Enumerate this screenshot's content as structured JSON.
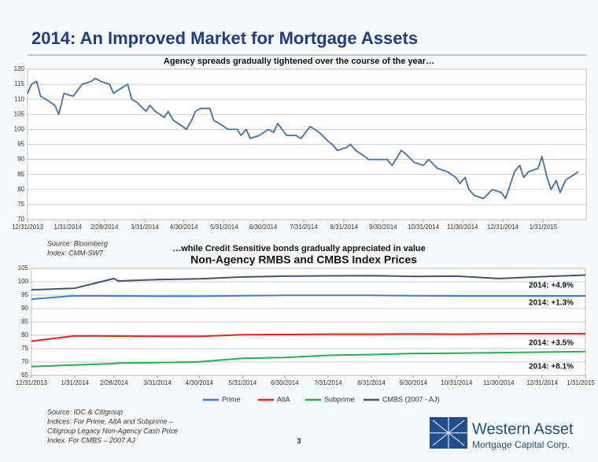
{
  "title": "2014: An Improved Market for Mortgage Assets",
  "page_number": "3",
  "logo": {
    "name": "Western Asset",
    "tagline": "Mortgage Capital Corp."
  },
  "chart_data": [
    {
      "type": "line",
      "title": "Agency spreads gradually tightened over the course of the year…",
      "source": [
        "Source: Bloomberg",
        "Index: CMM-SW7"
      ],
      "color": "#3f6fb5",
      "x": [
        0,
        3,
        7,
        10,
        14,
        21,
        24,
        28,
        35,
        42,
        49,
        52,
        56,
        63,
        66,
        73,
        77,
        80,
        84,
        91,
        94,
        98,
        105,
        108,
        112,
        119,
        122,
        126,
        129,
        133,
        140,
        143,
        147,
        154,
        161,
        164,
        168,
        171,
        178,
        185,
        189,
        192,
        199,
        206,
        210,
        217,
        224,
        231,
        234,
        238,
        245,
        248,
        252,
        259,
        262,
        269,
        276,
        280,
        287,
        290,
        297,
        304,
        308,
        315,
        322,
        329,
        332,
        336,
        339,
        343,
        350,
        357,
        364,
        367,
        371,
        374,
        378,
        381,
        385,
        392,
        395,
        399,
        402,
        406,
        409,
        413,
        416,
        420,
        423
      ],
      "values": [
        112,
        115,
        116,
        111,
        110,
        108,
        105,
        112,
        111,
        115,
        116,
        117,
        116,
        115,
        112,
        114,
        115,
        110,
        109,
        106,
        108,
        106,
        104,
        106,
        103,
        101,
        100,
        103,
        106,
        107,
        107,
        103,
        102,
        100,
        100,
        98,
        100,
        97,
        98,
        100,
        99,
        102,
        98,
        98,
        97,
        101,
        99,
        96,
        95,
        93,
        94,
        95,
        93,
        91,
        90,
        90,
        90,
        88,
        93,
        92,
        89,
        88,
        90,
        87,
        86,
        84,
        82,
        84,
        80,
        78,
        77,
        80,
        79,
        77,
        82,
        86,
        88,
        84,
        86,
        87,
        91,
        84,
        80,
        83,
        79,
        83,
        84,
        85,
        86
      ],
      "xlim": [
        0,
        429
      ],
      "ylim": [
        70,
        120
      ],
      "xticks": [
        {
          "value": 0,
          "label": "12/31/2013"
        },
        {
          "value": 31,
          "label": "1/31/2014"
        },
        {
          "value": 59,
          "label": "2/28/2014"
        },
        {
          "value": 90,
          "label": "3/31/2014"
        },
        {
          "value": 120,
          "label": "4/30/2014"
        },
        {
          "value": 151,
          "label": "5/31/2014"
        },
        {
          "value": 181,
          "label": "6/30/2014"
        },
        {
          "value": 212,
          "label": "7/31/2014"
        },
        {
          "value": 243,
          "label": "8/31/2014"
        },
        {
          "value": 273,
          "label": "9/30/2014"
        },
        {
          "value": 304,
          "label": "10/31/2014"
        },
        {
          "value": 334,
          "label": "11/30/2014"
        },
        {
          "value": 365,
          "label": "12/31/2014"
        },
        {
          "value": 396,
          "label": "1/31/2015"
        }
      ],
      "yticks": [
        70,
        75,
        80,
        85,
        90,
        95,
        100,
        105,
        110,
        115,
        120
      ],
      "grid": true
    },
    {
      "type": "line",
      "heading": "…while Credit Sensitive bonds gradually appreciated in value",
      "title": "Non-Agency RMBS and CMBS Index Prices",
      "source": [
        "Source: IDC & Citigroup",
        "Indices: For Prime, AltA and Subprime –",
        "Citigroup Legacy Non-Agency Cash Price",
        "Index. For CMBS – 2007 AJ"
      ],
      "x": [
        0,
        31,
        59,
        62,
        90,
        120,
        151,
        181,
        212,
        243,
        273,
        304,
        334,
        365,
        396
      ],
      "series": [
        {
          "name": "Prime",
          "color": "#3a7fd5",
          "values": [
            93.5,
            94.8,
            94.7,
            94.7,
            94.6,
            94.6,
            94.8,
            94.9,
            94.9,
            94.9,
            94.8,
            94.7,
            94.7,
            94.7,
            94.7
          ]
        },
        {
          "name": "AltA",
          "color": "#e8231e",
          "values": [
            77.8,
            79.8,
            79.7,
            79.7,
            79.6,
            79.6,
            80.2,
            80.3,
            80.4,
            80.4,
            80.5,
            80.4,
            80.6,
            80.6,
            80.6
          ]
        },
        {
          "name": "Subprime",
          "color": "#22b14c",
          "values": [
            68.3,
            68.9,
            69.4,
            69.6,
            69.8,
            70.1,
            71.4,
            71.7,
            72.5,
            72.8,
            73.2,
            73.3,
            73.5,
            73.7,
            73.9
          ]
        },
        {
          "name": "CMBS (2007 - AJ)",
          "color": "#44546a",
          "values": [
            97,
            97.6,
            101.2,
            100.3,
            100.8,
            101.1,
            101.8,
            102.1,
            102.2,
            102.3,
            102,
            102.1,
            101.2,
            101.9,
            102.5
          ]
        }
      ],
      "annotations": [
        "2014: +4.9%",
        "2014: +1.3%",
        "2014: +3.5%",
        "2014: +8.1%"
      ],
      "xlim": [
        0,
        396
      ],
      "ylim": [
        65,
        105
      ],
      "xticks": [
        {
          "value": 0,
          "label": "12/31/2013"
        },
        {
          "value": 31,
          "label": "1/31/2014"
        },
        {
          "value": 59,
          "label": "2/28/2014"
        },
        {
          "value": 90,
          "label": "3/31/2014"
        },
        {
          "value": 120,
          "label": "4/30/2014"
        },
        {
          "value": 151,
          "label": "5/31/2014"
        },
        {
          "value": 181,
          "label": "6/30/2014"
        },
        {
          "value": 212,
          "label": "7/31/2014"
        },
        {
          "value": 243,
          "label": "8/31/2014"
        },
        {
          "value": 273,
          "label": "9/30/2014"
        },
        {
          "value": 304,
          "label": "10/31/2014"
        },
        {
          "value": 334,
          "label": "11/30/2014"
        },
        {
          "value": 365,
          "label": "12/31/2014"
        },
        {
          "value": 396,
          "label": "1/31/2015"
        }
      ],
      "yticks": [
        65,
        70,
        75,
        80,
        85,
        90,
        95,
        100,
        105
      ],
      "grid": true,
      "legend": "bottom"
    }
  ]
}
